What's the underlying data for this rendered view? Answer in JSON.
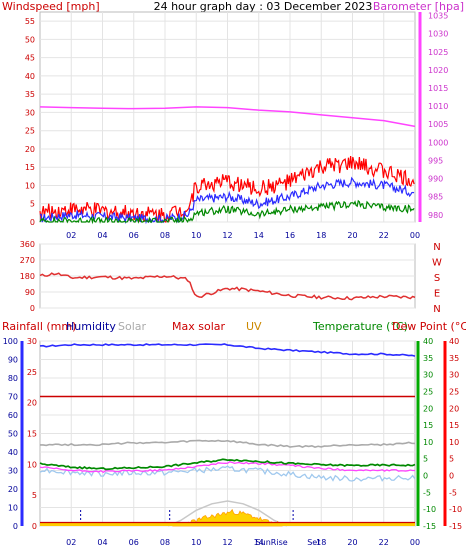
{
  "chart_data": [
    {
      "type": "line",
      "panel": "wind_baro",
      "title": "24 hour graph day : 03 December 2023",
      "left_label": "Windspeed [mph]",
      "right_label": "Barometer [hpa]",
      "left_ticks": [
        0,
        5,
        10,
        15,
        20,
        25,
        30,
        35,
        40,
        45,
        50,
        55
      ],
      "left_range": [
        0,
        57.5
      ],
      "right_ticks": [
        980,
        985,
        990,
        995,
        1000,
        1005,
        1010,
        1015,
        1020,
        1025,
        1030,
        1035
      ],
      "right_range": [
        978,
        1036
      ],
      "x_tick_labels": [
        "02",
        "04",
        "06",
        "08",
        "10",
        "12",
        "14",
        "16",
        "18",
        "20",
        "22",
        "00"
      ],
      "series": [
        {
          "key": "baro",
          "color": "#ff44ff",
          "axis": "right",
          "x": [
            0,
            2,
            4,
            6,
            8,
            10,
            12,
            14,
            16,
            18,
            20,
            22,
            24
          ],
          "y": [
            1009.8,
            1009.6,
            1009.4,
            1009.3,
            1009.4,
            1009.8,
            1009.6,
            1008.9,
            1008.4,
            1007.6,
            1006.8,
            1006.0,
            1004.4
          ]
        },
        {
          "key": "gust",
          "color": "#ff0000",
          "axis": "left",
          "x": [
            0,
            2,
            4,
            6,
            8,
            9.5,
            10,
            12,
            14,
            16,
            18,
            20,
            22,
            24
          ],
          "y": [
            2.5,
            3.5,
            3,
            2.5,
            2,
            4,
            10,
            11,
            9,
            11,
            15,
            16,
            14,
            11
          ]
        },
        {
          "key": "avg_wind",
          "color": "#2b2bff",
          "axis": "left",
          "x": [
            0,
            2,
            4,
            6,
            8,
            9.5,
            10,
            12,
            14,
            16,
            18,
            20,
            22,
            24
          ],
          "y": [
            1,
            2,
            1.5,
            1,
            0.8,
            2,
            6,
            7,
            5,
            7,
            10,
            11,
            10,
            8
          ]
        },
        {
          "key": "wind_low",
          "color": "#008800",
          "axis": "left",
          "x": [
            0,
            2,
            4,
            6,
            8,
            9.5,
            10,
            12,
            14,
            16,
            18,
            20,
            22,
            24
          ],
          "y": [
            0.2,
            0.3,
            0.2,
            0.2,
            0.2,
            0.5,
            2.5,
            3.5,
            2,
            3.5,
            4,
            5,
            4,
            3.5
          ]
        }
      ]
    },
    {
      "type": "line",
      "panel": "wind_direction",
      "left_ticks": [
        0,
        90,
        180,
        270,
        360
      ],
      "left_range": [
        0,
        360
      ],
      "right_labels": [
        "N",
        "W",
        "S",
        "E",
        "N"
      ],
      "series": [
        {
          "key": "direction",
          "color": "#e03030",
          "x": [
            0,
            1,
            2,
            4,
            6,
            8,
            8.5,
            9.5,
            10,
            12,
            13,
            14,
            16,
            18,
            20,
            22,
            24
          ],
          "y": [
            180,
            195,
            170,
            175,
            165,
            180,
            175,
            160,
            60,
            110,
            105,
            95,
            70,
            60,
            55,
            65,
            60
          ]
        }
      ]
    },
    {
      "type": "line",
      "panel": "rain_hum_solar_temp",
      "labels": [
        "Rainfall (mm)",
        "Humidity",
        "Solar",
        "Max solar",
        "UV",
        "Temperature (°C)",
        "Dew Point (°C)"
      ],
      "left_ticks": [
        0,
        10,
        20,
        30,
        40,
        50,
        60,
        70,
        80,
        90,
        100
      ],
      "left_range": [
        0,
        100
      ],
      "rain_ticks": [
        0,
        5,
        10,
        15,
        20,
        25,
        30
      ],
      "rain_range": [
        0,
        30
      ],
      "temp_ticks": [
        -15,
        -10,
        -5,
        0,
        5,
        10,
        15,
        20,
        25,
        30,
        35,
        40
      ],
      "temp_range": [
        -15,
        40
      ],
      "x_tick_labels": [
        "02",
        "04",
        "06",
        "08",
        "10",
        "12",
        "14",
        "SunRise",
        "Set",
        "18",
        "20",
        "22",
        "00"
      ],
      "series": [
        {
          "key": "humidity",
          "color": "#2b2bff",
          "x": [
            0,
            2,
            4,
            6,
            8,
            10,
            12,
            13,
            14,
            16,
            18,
            20,
            22,
            24
          ],
          "y": [
            97,
            98,
            98,
            98,
            98,
            98,
            98,
            97,
            96,
            95,
            94,
            93,
            93,
            92
          ]
        },
        {
          "key": "max_solar_level",
          "color": "#cc0000",
          "x": [
            0,
            24
          ],
          "y": [
            70,
            70
          ]
        },
        {
          "key": "solar_trace",
          "color": "#aaaaaa",
          "x": [
            0,
            2,
            4,
            6,
            8,
            10,
            12,
            14,
            16,
            18,
            20,
            22,
            24
          ],
          "y": [
            44,
            44,
            44,
            45,
            45,
            46,
            46,
            44,
            43,
            43,
            44,
            44,
            45
          ]
        },
        {
          "key": "temperature",
          "color": "#008800",
          "x": [
            0,
            2,
            4,
            6,
            8,
            10,
            12,
            14,
            16,
            18,
            20,
            22,
            24
          ],
          "y": [
            3.5,
            2.5,
            2.0,
            2.3,
            2.7,
            3.8,
            4.8,
            4.2,
            3.6,
            3.2,
            3.0,
            3.1,
            3.1
          ]
        },
        {
          "key": "dew_point",
          "color": "#ff44ff",
          "x": [
            0,
            2,
            4,
            6,
            8,
            10,
            12,
            14,
            16,
            18,
            20,
            22,
            24
          ],
          "y": [
            2.5,
            1.5,
            1.2,
            1.4,
            1.6,
            2.7,
            3.9,
            3.6,
            3.0,
            2.1,
            1.6,
            1.5,
            1.5
          ]
        },
        {
          "key": "light_blue",
          "color": "#9fc8ee",
          "x": [
            0,
            2,
            4,
            6,
            8,
            10,
            12,
            14,
            16,
            18,
            20,
            22,
            24
          ],
          "y": [
            1.8,
            1.0,
            0.6,
            0.8,
            0.8,
            1.5,
            2.0,
            1.4,
            0.4,
            -0.6,
            -1.0,
            -0.8,
            -0.4
          ]
        },
        {
          "key": "max_solar_curve",
          "color": "#c8c8c8",
          "x": [
            8.2,
            9,
            10,
            11,
            12,
            13,
            14,
            15,
            15.8
          ],
          "y": [
            0,
            3,
            8.5,
            12,
            13.5,
            12,
            8.5,
            3,
            0
          ]
        },
        {
          "key": "solar_yellow",
          "color": "#ffd200",
          "x": [
            8.5,
            9.5,
            10.5,
            11.5,
            12.3,
            13,
            13.8,
            14.6,
            15.5
          ],
          "y": [
            0.5,
            1.5,
            4,
            6,
            7.5,
            6.5,
            4.5,
            2,
            0.5
          ]
        }
      ]
    }
  ]
}
